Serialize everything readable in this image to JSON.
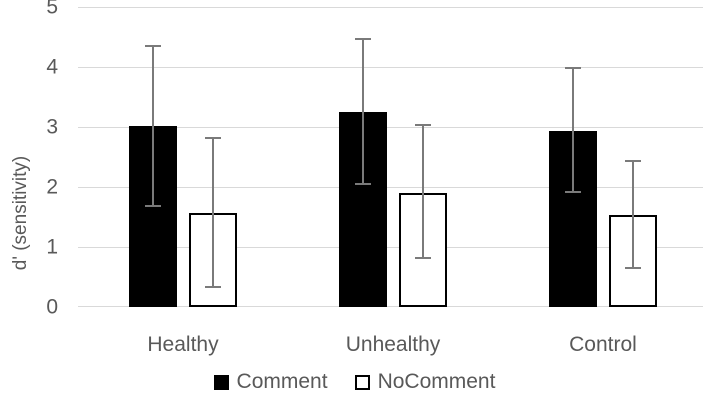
{
  "chart_data": {
    "type": "bar",
    "title": "",
    "categories": [
      "Healthy",
      "Unhealthy",
      "Control"
    ],
    "series": [
      {
        "name": "Comment",
        "fill": "#000000",
        "values": [
          3.01,
          3.25,
          2.94
        ],
        "error_high": [
          4.35,
          4.46,
          3.98
        ],
        "error_low": [
          1.69,
          2.05,
          1.92
        ]
      },
      {
        "name": "NoComment",
        "fill": "#ffffff",
        "outline": "#000000",
        "values": [
          1.56,
          1.9,
          1.54
        ],
        "error_high": [
          2.82,
          3.03,
          2.43
        ],
        "error_low": [
          0.33,
          0.82,
          0.65
        ]
      }
    ],
    "xlabel": "",
    "ylabel": "d' (sensitivity)",
    "ylim": [
      0,
      5
    ],
    "yticks": [
      0,
      1,
      2,
      3,
      4,
      5
    ],
    "grid": true,
    "legend_position": "bottom",
    "colors": {
      "gridline": "#d9d9d9",
      "axis_text": "#595959",
      "error_bar": "#7a7a7a",
      "background": "#ffffff"
    }
  }
}
